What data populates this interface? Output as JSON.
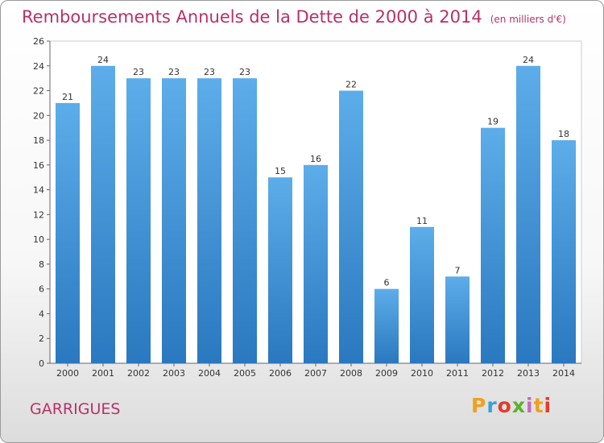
{
  "title": "Remboursements Annuels de la Dette de 2000 à 2014",
  "unit": "(en milliers d'€)",
  "commune": "GARRIGUES",
  "logo": {
    "p": "P",
    "r": "r",
    "o": "o",
    "x": "x",
    "i": "i",
    "t": "t",
    "i2": "i"
  },
  "chart_data": {
    "type": "bar",
    "title": "Remboursements Annuels de la Dette de 2000 à 2014",
    "subtitle": "(en milliers d'€)",
    "xlabel": "",
    "ylabel": "",
    "categories": [
      "2000",
      "2001",
      "2002",
      "2003",
      "2004",
      "2005",
      "2006",
      "2007",
      "2008",
      "2009",
      "2010",
      "2011",
      "2012",
      "2013",
      "2014"
    ],
    "values": [
      21,
      24,
      23,
      23,
      23,
      23,
      15,
      16,
      22,
      6,
      11,
      7,
      19,
      24,
      18
    ],
    "ylim": [
      0,
      26
    ],
    "yticks": [
      0,
      2,
      4,
      6,
      8,
      10,
      12,
      14,
      16,
      18,
      20,
      22,
      24,
      26
    ],
    "grid": false,
    "legend": "none",
    "bar_color_top": "#5dadea",
    "bar_color_bottom": "#2a78bf"
  }
}
